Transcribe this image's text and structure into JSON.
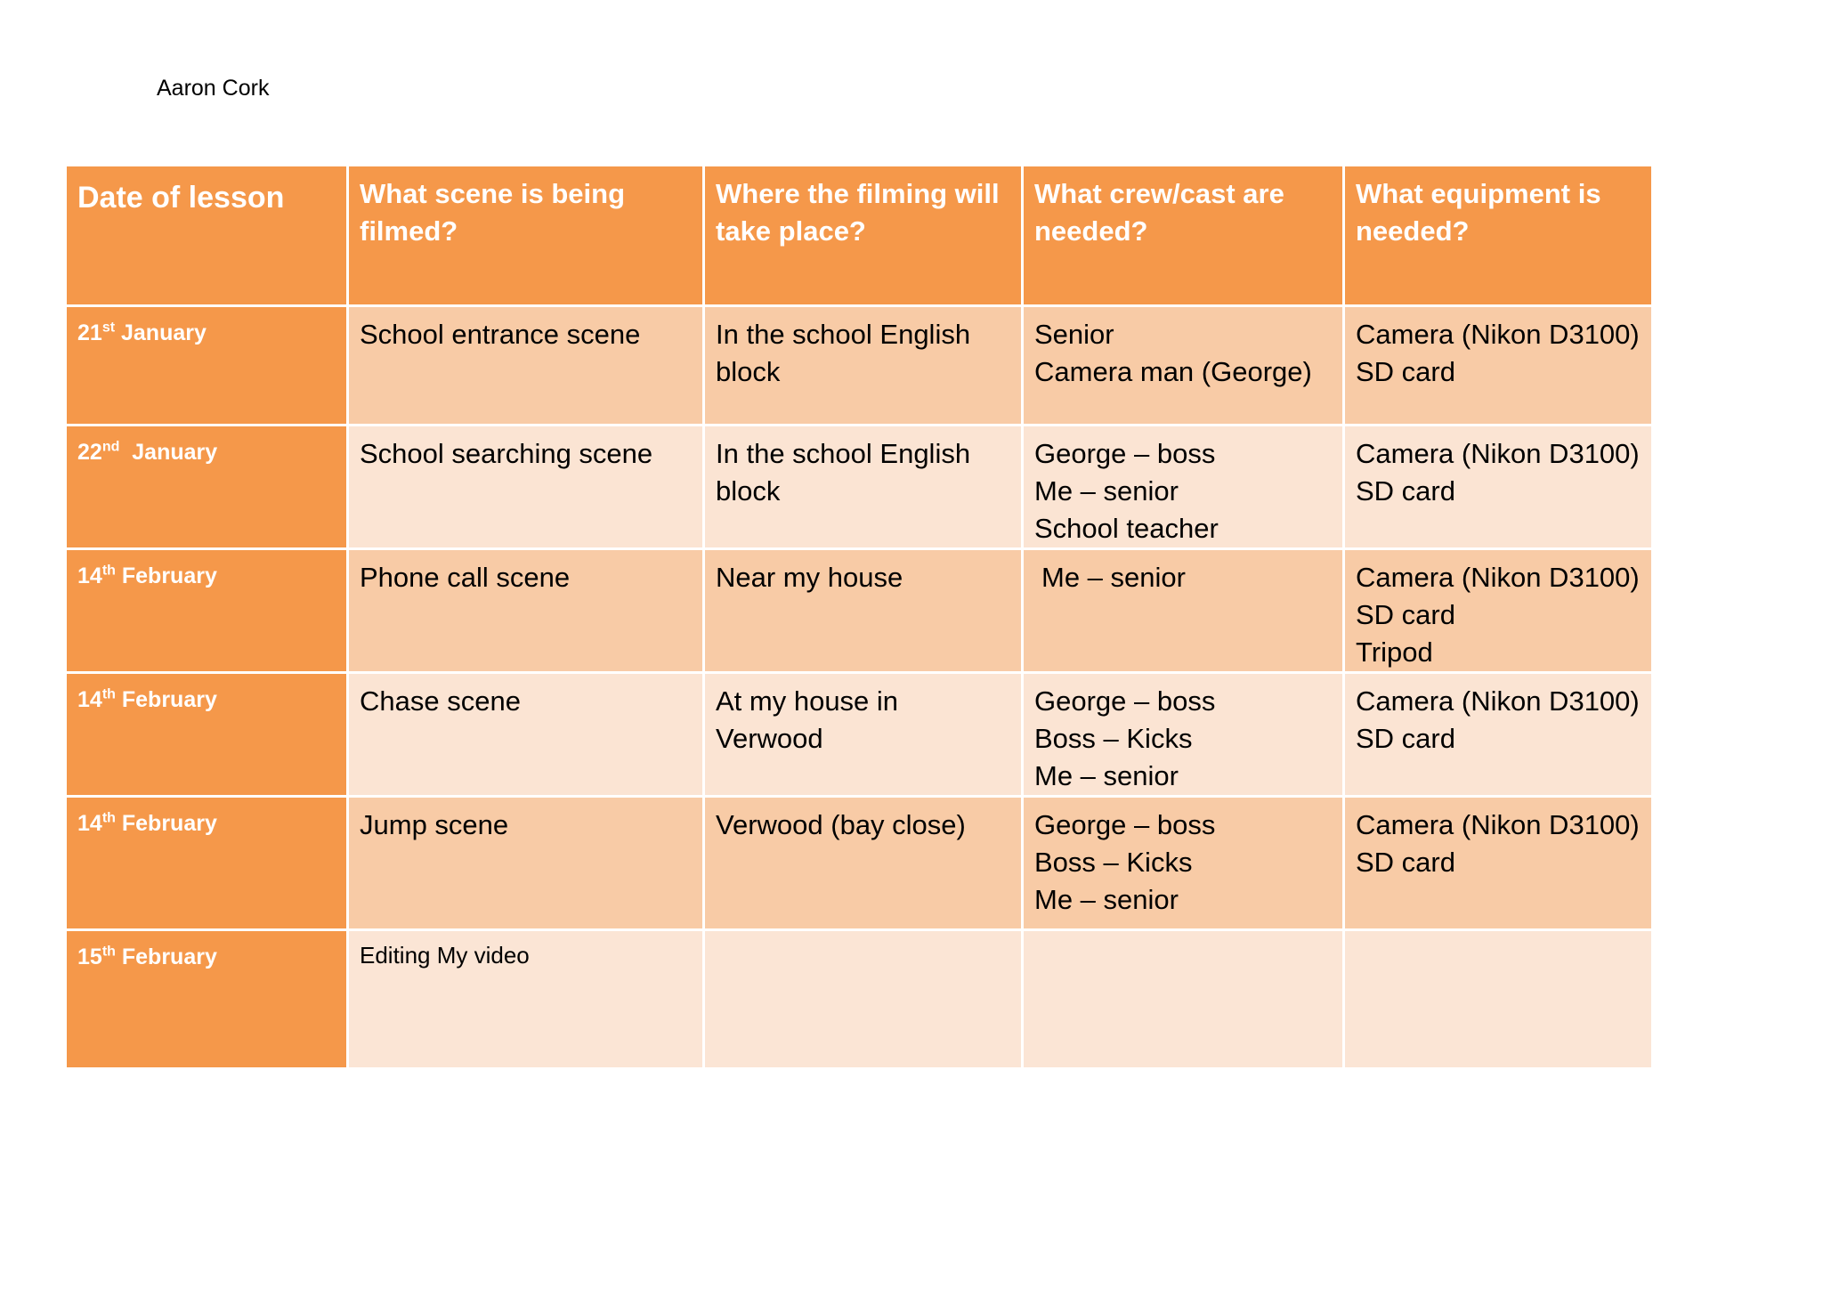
{
  "author": "Aaron Cork",
  "table": {
    "headers": [
      "Date of lesson",
      "What scene is being filmed?",
      "Where the filming will take place?",
      "What crew/cast are needed?",
      "What equipment is needed?"
    ],
    "rows": [
      {
        "date_day": "21",
        "date_suffix": "st",
        "date_month": "January",
        "scene": "School entrance scene",
        "location": [
          "In the school English",
          "block"
        ],
        "crew": [
          "Senior",
          "Camera man (George)"
        ],
        "equipment": [
          "Camera (Nikon D3100)",
          "SD card"
        ]
      },
      {
        "date_day": "22",
        "date_suffix": "nd",
        "date_month": "January",
        "scene": "School searching scene",
        "location": [
          "In the school English",
          "block"
        ],
        "crew": [
          "George – boss",
          "Me – senior",
          "School teacher"
        ],
        "equipment": [
          "Camera (Nikon D3100)",
          "SD card"
        ]
      },
      {
        "date_day": "14",
        "date_suffix": "th",
        "date_month": "February",
        "scene": "Phone call scene",
        "location": [
          "Near my house"
        ],
        "crew": [
          "Me – senior"
        ],
        "equipment": [
          "Camera (Nikon D3100)",
          "SD card",
          "Tripod"
        ]
      },
      {
        "date_day": "14",
        "date_suffix": "th",
        "date_month": "February",
        "scene": "Chase scene",
        "location": [
          "At my house in",
          "Verwood"
        ],
        "crew": [
          "George – boss",
          "Boss – Kicks",
          "Me – senior"
        ],
        "equipment": [
          "Camera (Nikon D3100)",
          "SD card"
        ]
      },
      {
        "date_day": "14",
        "date_suffix": "th",
        "date_month": "February",
        "scene": "Jump scene",
        "location": [
          "Verwood (bay close)"
        ],
        "crew": [
          "George – boss",
          "Boss – Kicks",
          "Me – senior"
        ],
        "equipment": [
          "Camera (Nikon D3100)",
          "SD card"
        ]
      },
      {
        "date_day": "15",
        "date_suffix": "th",
        "date_month": "February",
        "scene": "Editing My video",
        "location": [],
        "crew": [],
        "equipment": []
      }
    ]
  },
  "colors": {
    "header_orange": "#f5984a",
    "row_shade_dark": "#f8cba6",
    "row_shade_light": "#fbe4d3",
    "header_text": "#ffffff"
  }
}
